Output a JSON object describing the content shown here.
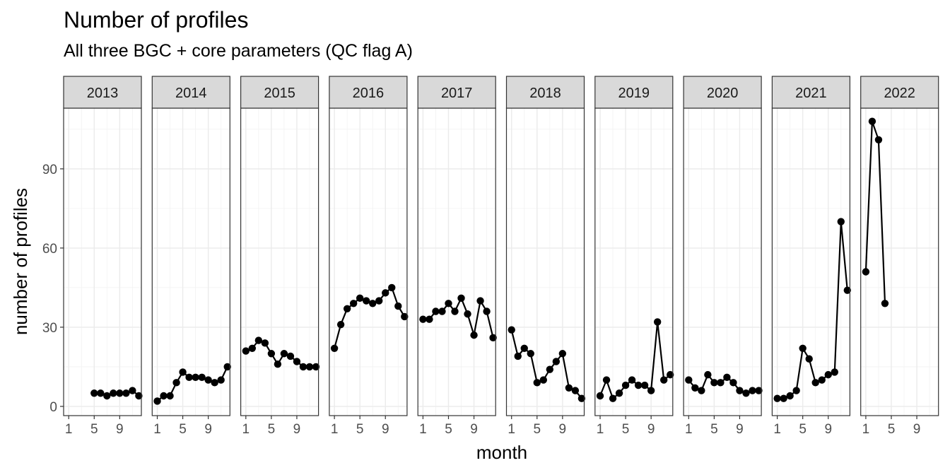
{
  "title": "Number of profiles",
  "subtitle": "All three BGC + core parameters (QC flag A)",
  "chart_data": {
    "type": "line",
    "facet_by": "year",
    "xlabel": "month",
    "ylabel": "number of profiles",
    "x_ticks": [
      1,
      5,
      9
    ],
    "y_ticks": [
      0,
      30,
      60,
      90
    ],
    "xlim": [
      0.2,
      12.4
    ],
    "ylim": [
      -3.5,
      113
    ],
    "grid": true,
    "markers": "points",
    "colors": {
      "series": "#000000",
      "strip_fill": "#d9d9d9",
      "grid": "#ebebeb",
      "border": "#333333"
    },
    "panels": [
      {
        "year": "2013",
        "x": [
          5,
          6,
          7,
          8,
          9,
          10,
          11,
          12
        ],
        "y": [
          5,
          5,
          4,
          5,
          5,
          5,
          6,
          4
        ]
      },
      {
        "year": "2014",
        "x": [
          1,
          2,
          3,
          4,
          5,
          6,
          7,
          8,
          9,
          10,
          11,
          12
        ],
        "y": [
          2,
          4,
          4,
          9,
          13,
          11,
          11,
          11,
          10,
          9,
          10,
          15
        ]
      },
      {
        "year": "2015",
        "x": [
          1,
          2,
          3,
          4,
          5,
          6,
          7,
          8,
          9,
          10,
          11,
          12
        ],
        "y": [
          21,
          22,
          25,
          24,
          20,
          16,
          20,
          19,
          17,
          15,
          15,
          15
        ]
      },
      {
        "year": "2016",
        "x": [
          1,
          2,
          3,
          4,
          5,
          6,
          7,
          8,
          9,
          10,
          11,
          12
        ],
        "y": [
          22,
          31,
          37,
          39,
          41,
          40,
          39,
          40,
          43,
          45,
          38,
          34
        ]
      },
      {
        "year": "2017",
        "x": [
          1,
          2,
          3,
          4,
          5,
          6,
          7,
          8,
          9,
          10,
          11,
          12
        ],
        "y": [
          33,
          33,
          36,
          36,
          39,
          36,
          41,
          35,
          27,
          40,
          36,
          26
        ]
      },
      {
        "year": "2018",
        "x": [
          1,
          2,
          3,
          4,
          5,
          6,
          7,
          8,
          9,
          10,
          11,
          12
        ],
        "y": [
          29,
          19,
          22,
          20,
          9,
          10,
          14,
          17,
          20,
          7,
          6,
          3
        ]
      },
      {
        "year": "2019",
        "x": [
          1,
          2,
          3,
          4,
          5,
          6,
          7,
          8,
          9,
          10,
          11,
          12
        ],
        "y": [
          4,
          10,
          3,
          5,
          8,
          10,
          8,
          8,
          6,
          32,
          10,
          12
        ]
      },
      {
        "year": "2020",
        "x": [
          1,
          2,
          3,
          4,
          5,
          6,
          7,
          8,
          9,
          10,
          11,
          12
        ],
        "y": [
          10,
          7,
          6,
          12,
          9,
          9,
          11,
          9,
          6,
          5,
          6,
          6
        ]
      },
      {
        "year": "2021",
        "x": [
          1,
          2,
          3,
          4,
          5,
          6,
          7,
          8,
          9,
          10,
          11,
          12
        ],
        "y": [
          3,
          3,
          4,
          6,
          22,
          18,
          9,
          10,
          12,
          13,
          70,
          44
        ]
      },
      {
        "year": "2022",
        "x": [
          1,
          2,
          3,
          4
        ],
        "y": [
          51,
          108,
          101,
          39
        ]
      }
    ]
  }
}
